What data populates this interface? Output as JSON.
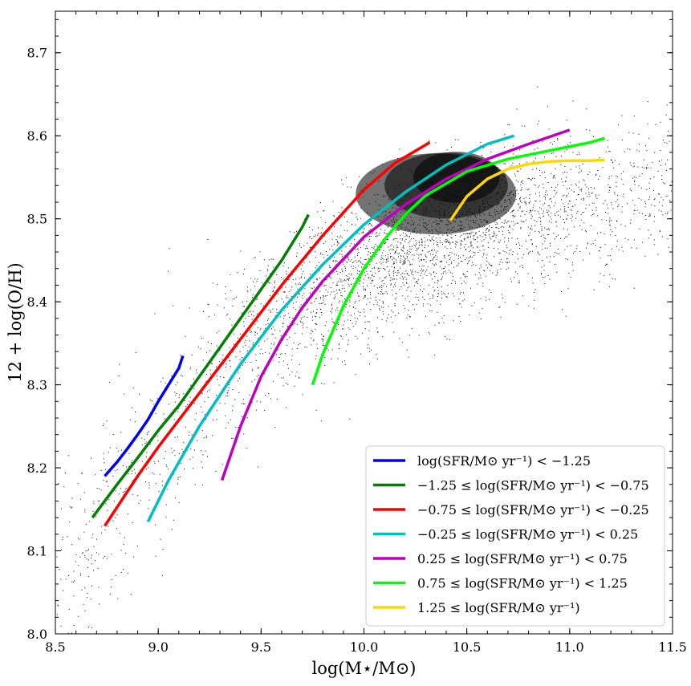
{
  "chart_data": {
    "type": "scatter",
    "title": "",
    "xlabel": "log(M⋆/M⊙)",
    "ylabel": "12 + log(O/H)",
    "xlim": [
      8.5,
      11.5
    ],
    "ylim": [
      8.0,
      8.75
    ],
    "xticks": [
      8.5,
      9.0,
      9.5,
      10.0,
      10.5,
      11.0,
      11.5
    ],
    "xtick_labels": [
      "8.5",
      "9.0",
      "9.5",
      "10.0",
      "10.5",
      "11.0",
      "11.5"
    ],
    "yticks": [
      8.0,
      8.1,
      8.2,
      8.3,
      8.4,
      8.5,
      8.6,
      8.7
    ],
    "ytick_labels": [
      "8.0",
      "8.1",
      "8.2",
      "8.3",
      "8.4",
      "8.5",
      "8.6",
      "8.7"
    ],
    "grid": false,
    "legend_position": "bottom-right",
    "scatter_description": "dense cloud of individual galaxies (black points) following the mass-metallicity relation",
    "scatter_color": "#000000",
    "series": [
      {
        "name": "log(SFR/M⊙ yr⁻¹) < −1.25",
        "color": "#0000ff",
        "x": [
          8.74,
          8.8,
          8.85,
          8.9,
          8.95,
          9.0,
          9.05,
          9.1,
          9.12
        ],
        "y": [
          8.19,
          8.207,
          8.223,
          8.24,
          8.258,
          8.28,
          8.3,
          8.32,
          8.335
        ]
      },
      {
        "name": "−1.25 ≤ log(SFR/M⊙ yr⁻¹) < −0.75",
        "color": "#008000",
        "x": [
          8.68,
          8.8,
          8.9,
          9.0,
          9.1,
          9.2,
          9.3,
          9.4,
          9.5,
          9.6,
          9.7,
          9.73
        ],
        "y": [
          8.14,
          8.18,
          8.212,
          8.245,
          8.275,
          8.31,
          8.345,
          8.38,
          8.415,
          8.45,
          8.49,
          8.505
        ]
      },
      {
        "name": "−0.75 ≤ log(SFR/M⊙ yr⁻¹) < −0.25",
        "color": "#ff0000",
        "x": [
          8.74,
          8.9,
          9.0,
          9.2,
          9.4,
          9.6,
          9.8,
          10.0,
          10.15,
          10.32
        ],
        "y": [
          8.13,
          8.19,
          8.225,
          8.29,
          8.355,
          8.42,
          8.48,
          8.535,
          8.567,
          8.592
        ]
      },
      {
        "name": "−0.25 ≤ log(SFR/M⊙ yr⁻¹) < 0.25",
        "color": "#00bfbf",
        "x": [
          8.95,
          9.05,
          9.2,
          9.4,
          9.6,
          9.8,
          10.0,
          10.2,
          10.4,
          10.6,
          10.73
        ],
        "y": [
          8.135,
          8.185,
          8.25,
          8.325,
          8.39,
          8.445,
          8.493,
          8.532,
          8.565,
          8.59,
          8.6
        ]
      },
      {
        "name": "0.25 ≤ log(SFR/M⊙ yr⁻¹) < 0.75",
        "color": "#bf00bf",
        "x": [
          9.31,
          9.4,
          9.5,
          9.6,
          9.7,
          9.8,
          10.0,
          10.2,
          10.4,
          10.6,
          10.8,
          11.0
        ],
        "y": [
          8.185,
          8.25,
          8.31,
          8.355,
          8.393,
          8.425,
          8.478,
          8.517,
          8.548,
          8.572,
          8.59,
          8.607
        ]
      },
      {
        "name": "0.75 ≤ log(SFR/M⊙ yr⁻¹) < 1.25",
        "color": "#00ff00",
        "x": [
          9.75,
          9.8,
          9.9,
          10.0,
          10.1,
          10.2,
          10.3,
          10.5,
          10.7,
          10.9,
          11.1,
          11.17
        ],
        "y": [
          8.3,
          8.337,
          8.395,
          8.44,
          8.475,
          8.505,
          8.528,
          8.557,
          8.572,
          8.582,
          8.592,
          8.597
        ]
      },
      {
        "name": "1.25 ≤ log(SFR/M⊙ yr⁻¹)",
        "color": "#ffd700",
        "x": [
          10.42,
          10.5,
          10.6,
          10.7,
          10.8,
          10.9,
          11.0,
          11.1,
          11.17
        ],
        "y": [
          8.498,
          8.527,
          8.548,
          8.56,
          8.566,
          8.569,
          8.57,
          8.57,
          8.571
        ]
      }
    ]
  }
}
